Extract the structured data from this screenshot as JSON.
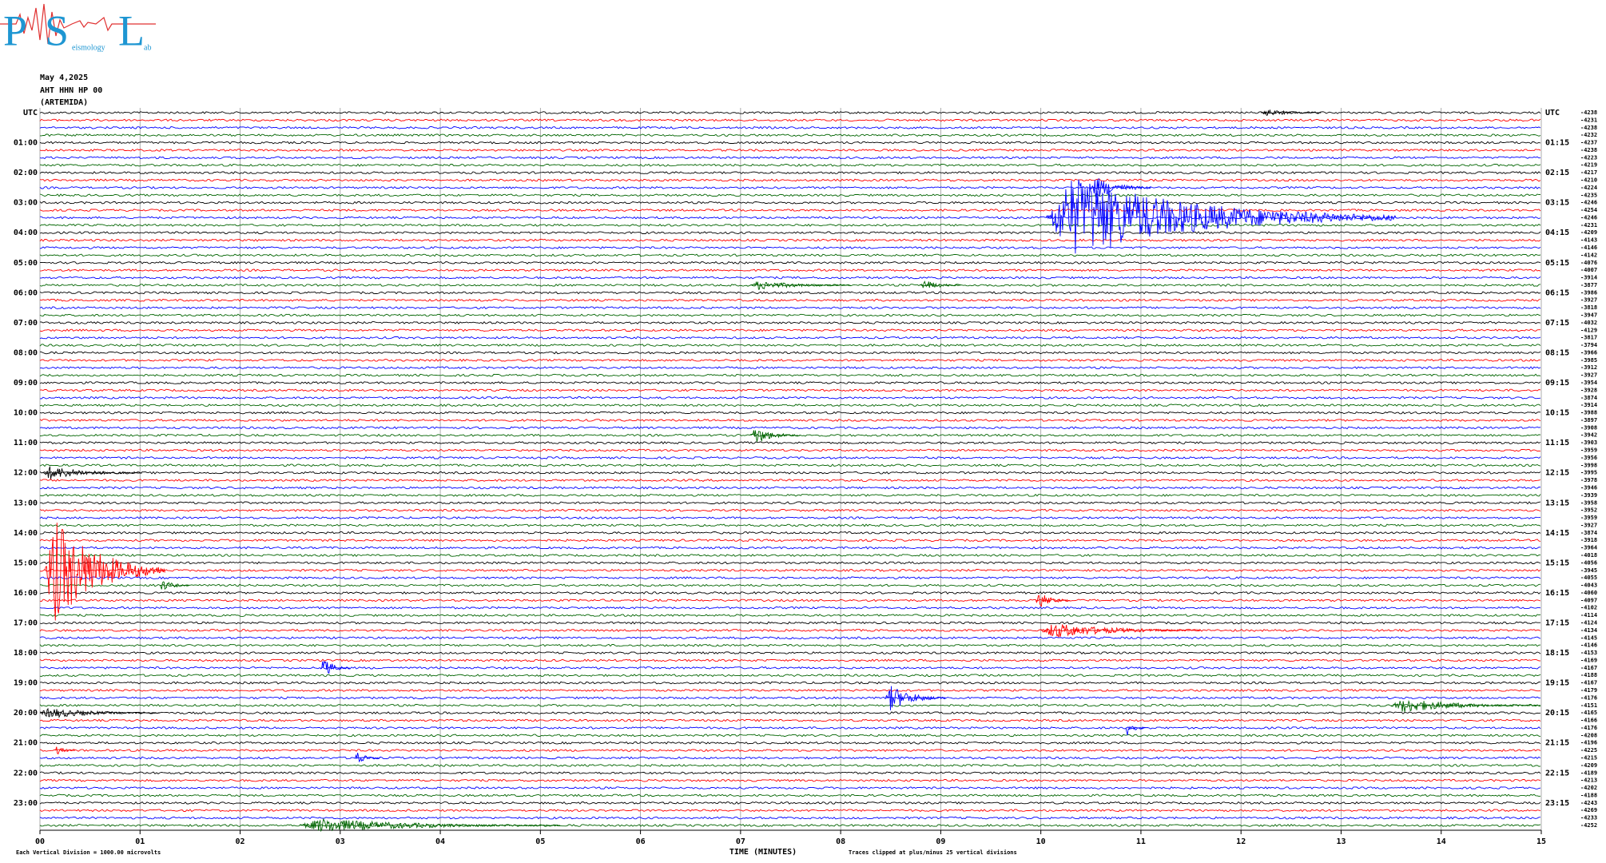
{
  "chart_data": {
    "type": "helicorder",
    "logo": {
      "letters": [
        "P",
        "S",
        "L"
      ],
      "words": [
        "eismology",
        "ab"
      ]
    },
    "date": "May 4,2025",
    "station": "AHT HHN HP 00",
    "location": "(ARTEMIDA)",
    "left_labels": [
      "UTC",
      "01:00",
      "02:00",
      "03:00",
      "04:00",
      "05:00",
      "06:00",
      "07:00",
      "08:00",
      "09:00",
      "10:00",
      "11:00",
      "12:00",
      "13:00",
      "14:00",
      "15:00",
      "16:00",
      "17:00",
      "18:00",
      "19:00",
      "20:00",
      "21:00",
      "22:00",
      "23:00"
    ],
    "right_labels": [
      "UTC",
      "01:15",
      "02:15",
      "03:15",
      "04:15",
      "05:15",
      "06:15",
      "07:15",
      "08:15",
      "09:15",
      "10:15",
      "11:15",
      "12:15",
      "13:15",
      "14:15",
      "15:15",
      "16:15",
      "17:15",
      "18:15",
      "19:15",
      "20:15",
      "21:15",
      "22:15",
      "23:15"
    ],
    "offsets": [
      -4238,
      -4231,
      -4238,
      -4232,
      -4237,
      -4238,
      -4223,
      -4219,
      -4217,
      -4210,
      -4224,
      -4235,
      -4246,
      -4254,
      -4246,
      -4231,
      -4209,
      -4143,
      -4146,
      -4142,
      -4076,
      -4007,
      -3914,
      -3877,
      -3986,
      -3927,
      -3818,
      -3947,
      -4032,
      -4129,
      -3817,
      -3794,
      -3966,
      -3985,
      -3912,
      -3927,
      -3954,
      -3928,
      -3874,
      -3914,
      -3988,
      -3897,
      -3908,
      -3942,
      -3903,
      -3959,
      -3956,
      -3998,
      -3995,
      -3978,
      -3946,
      -3939,
      -3958,
      -3952,
      -3959,
      -3927,
      -3874,
      -3918,
      -3964,
      -4018,
      -4056,
      -3945,
      -4055,
      -4043,
      -4060,
      -4097,
      -4102,
      -4114,
      -4124,
      -4134,
      -4145,
      -4146,
      -4153,
      -4169,
      -4167,
      -4188,
      -4167,
      -4179,
      -4176,
      -4151,
      -4165,
      -4166,
      -4176,
      -4208,
      -4196,
      -4225,
      -4215,
      -4209,
      -4189,
      -4213,
      -4202,
      -4188,
      -4243,
      -4269,
      -4233,
      -4252
    ],
    "trace_colors": [
      "#000000",
      "#ff0000",
      "#0000ff",
      "#006400"
    ],
    "xlabel": "TIME (MINUTES)",
    "xlim": [
      0,
      15
    ],
    "xticks": [
      {
        "value": 0,
        "label": "00"
      },
      {
        "value": 1,
        "label": "01"
      },
      {
        "value": 2,
        "label": "02"
      },
      {
        "value": 3,
        "label": "03"
      },
      {
        "value": 4,
        "label": "04"
      },
      {
        "value": 5,
        "label": "05"
      },
      {
        "value": 6,
        "label": "06"
      },
      {
        "value": 7,
        "label": "07"
      },
      {
        "value": 8,
        "label": "08"
      },
      {
        "value": 9,
        "label": "09"
      },
      {
        "value": 10,
        "label": "10"
      },
      {
        "value": 11,
        "label": "11"
      },
      {
        "value": 12,
        "label": "12"
      },
      {
        "value": 13,
        "label": "13"
      },
      {
        "value": 14,
        "label": "14"
      },
      {
        "value": 15,
        "label": "15"
      }
    ],
    "grid": true,
    "scale_note": "Each Vertical Division = 1000.00 microvolts",
    "clip_note": "Traces clipped at plus/minus 25 vertical divisions",
    "events": [
      {
        "line": 14,
        "start": 10.05,
        "duration": 3.5,
        "amplitude": 7
      },
      {
        "line": 10,
        "start": 10.5,
        "duration": 0.6,
        "amplitude": 2
      },
      {
        "line": 0,
        "start": 12.2,
        "duration": 0.6,
        "amplitude": 0.6
      },
      {
        "line": 23,
        "start": 7.1,
        "duration": 1.0,
        "amplitude": 0.8
      },
      {
        "line": 23,
        "start": 8.8,
        "duration": 0.4,
        "amplitude": 1.0
      },
      {
        "line": 43,
        "start": 7.1,
        "duration": 0.5,
        "amplitude": 1.5
      },
      {
        "line": 48,
        "start": 0.02,
        "duration": 1.0,
        "amplitude": 1.2
      },
      {
        "line": 61,
        "start": 0.05,
        "duration": 1.2,
        "amplitude": 9
      },
      {
        "line": 63,
        "start": 1.2,
        "duration": 0.3,
        "amplitude": 1.0
      },
      {
        "line": 65,
        "start": 9.95,
        "duration": 0.35,
        "amplitude": 1.5
      },
      {
        "line": 69,
        "start": 10.0,
        "duration": 1.6,
        "amplitude": 1.3
      },
      {
        "line": 74,
        "start": 2.8,
        "duration": 0.3,
        "amplitude": 1.8
      },
      {
        "line": 78,
        "start": 8.45,
        "duration": 0.6,
        "amplitude": 2.2
      },
      {
        "line": 79,
        "start": 13.5,
        "duration": 1.5,
        "amplitude": 1.2
      },
      {
        "line": 80,
        "start": 0.0,
        "duration": 1.2,
        "amplitude": 0.9
      },
      {
        "line": 82,
        "start": 10.85,
        "duration": 0.2,
        "amplitude": 1.5
      },
      {
        "line": 85,
        "start": 0.15,
        "duration": 0.2,
        "amplitude": 0.8
      },
      {
        "line": 86,
        "start": 3.15,
        "duration": 0.25,
        "amplitude": 1.0
      },
      {
        "line": 95,
        "start": 2.6,
        "duration": 2.6,
        "amplitude": 1.2
      }
    ]
  }
}
